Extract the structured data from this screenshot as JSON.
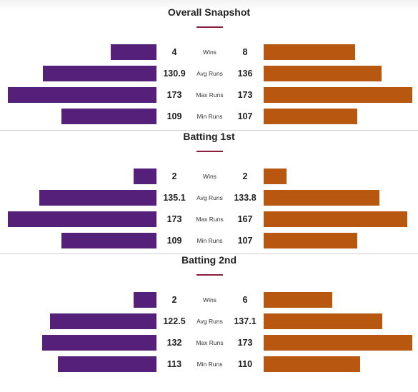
{
  "colors": {
    "left_team": "#55207a",
    "right_team": "#b8570f",
    "accent": "#8a1f3b"
  },
  "chart_data": [
    {
      "type": "bar",
      "title": "Overall Snapshot",
      "categories": [
        "Wins",
        "Avg Runs",
        "Max Runs",
        "Min Runs"
      ],
      "series": [
        {
          "values": [
            4,
            130.9,
            173,
            109
          ],
          "labels": [
            "4",
            "130.9",
            "173",
            "109"
          ]
        },
        {
          "values": [
            8,
            136,
            173,
            107
          ],
          "labels": [
            "8",
            "136",
            "173",
            "107"
          ]
        }
      ]
    },
    {
      "type": "bar",
      "title": "Batting 1st",
      "categories": [
        "Wins",
        "Avg Runs",
        "Max Runs",
        "Min Runs"
      ],
      "series": [
        {
          "values": [
            2,
            135.1,
            173,
            109
          ],
          "labels": [
            "2",
            "135.1",
            "173",
            "109"
          ]
        },
        {
          "values": [
            2,
            133.8,
            167,
            107
          ],
          "labels": [
            "2",
            "133.8",
            "167",
            "107"
          ]
        }
      ]
    },
    {
      "type": "bar",
      "title": "Batting 2nd",
      "categories": [
        "Wins",
        "Avg Runs",
        "Max Runs",
        "Min Runs"
      ],
      "series": [
        {
          "values": [
            2,
            122.5,
            132,
            113
          ],
          "labels": [
            "2",
            "122.5",
            "132",
            "113"
          ]
        },
        {
          "values": [
            6,
            137.1,
            173,
            110
          ],
          "labels": [
            "6",
            "137.1",
            "173",
            "110"
          ]
        }
      ]
    }
  ]
}
